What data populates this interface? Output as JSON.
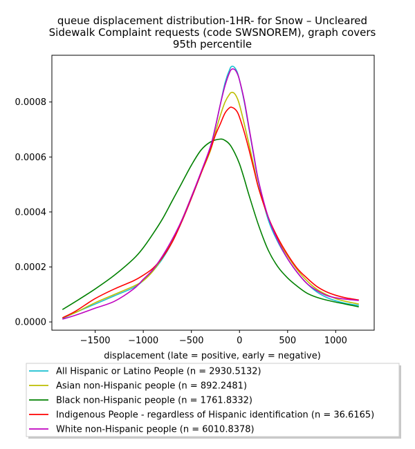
{
  "chart_data": {
    "type": "line",
    "title_lines": [
      "queue displacement distribution-1HR-  for Snow – Uncleared",
      "Sidewalk Complaint  requests (code SWSNOREM), graph covers",
      "95th percentile"
    ],
    "xlabel": "displacement (late = positive, early = negative)",
    "ylabel": "",
    "xlim": [
      -1950,
      1400
    ],
    "ylim": [
      -3e-05,
      0.00097
    ],
    "x_ticks": [
      -1500,
      -1000,
      -500,
      0,
      500,
      1000
    ],
    "x_tick_labels": [
      "−1500",
      "−1000",
      "−500",
      "0",
      "500",
      "1000"
    ],
    "y_ticks": [
      0,
      0.0002,
      0.0004,
      0.0006,
      0.0008
    ],
    "y_tick_labels": [
      "0.0000",
      "0.0002",
      "0.0004",
      "0.0006",
      "0.0008"
    ],
    "grid": false,
    "legend_position": "bottom-outside",
    "series": [
      {
        "name": "All Hispanic or Latino People (n = 2930.5132)",
        "color": "#17becf",
        "x": [
          -1840,
          -1700,
          -1500,
          -1300,
          -1100,
          -1000,
          -900,
          -800,
          -700,
          -600,
          -500,
          -400,
          -300,
          -250,
          -200,
          -150,
          -100,
          -75,
          -50,
          -25,
          0,
          50,
          100,
          150,
          200,
          300,
          400,
          500,
          600,
          700,
          800,
          900,
          1000,
          1100,
          1240
        ],
        "y": [
          1.2e-05,
          3.5e-05,
          6.5e-05,
          9.5e-05,
          0.000125,
          0.00015,
          0.000185,
          0.00023,
          0.00029,
          0.000365,
          0.00045,
          0.00054,
          0.00064,
          0.00071,
          0.00079,
          0.00087,
          0.00092,
          0.00093,
          0.000925,
          0.00091,
          0.00088,
          0.0008,
          0.0007,
          0.0006,
          0.000505,
          0.00037,
          0.00029,
          0.00023,
          0.00018,
          0.00014,
          0.00011,
          9e-05,
          7.7e-05,
          6.8e-05,
          6e-05
        ]
      },
      {
        "name": "Asian non-Hispanic people (n = 892.2481)",
        "color": "#bcbd00",
        "x": [
          -1840,
          -1700,
          -1500,
          -1300,
          -1100,
          -1000,
          -900,
          -800,
          -700,
          -600,
          -500,
          -400,
          -300,
          -250,
          -200,
          -150,
          -100,
          -75,
          -50,
          -25,
          0,
          50,
          100,
          150,
          200,
          300,
          400,
          500,
          600,
          700,
          800,
          900,
          1000,
          1100,
          1240
        ],
        "y": [
          1.5e-05,
          3.5e-05,
          7e-05,
          0.0001,
          0.00013,
          0.00015,
          0.000185,
          0.000235,
          0.000295,
          0.00037,
          0.000455,
          0.00054,
          0.000625,
          0.00069,
          0.00075,
          0.0008,
          0.00083,
          0.000835,
          0.00083,
          0.000815,
          0.00079,
          0.00072,
          0.000645,
          0.000565,
          0.000485,
          0.00038,
          0.0003,
          0.00024,
          0.00019,
          0.00015,
          0.00012,
          0.0001,
          8.5e-05,
          7.5e-05,
          6.5e-05
        ]
      },
      {
        "name": "Black non-Hispanic people (n = 1761.8332)",
        "color": "#008000",
        "x": [
          -1840,
          -1700,
          -1500,
          -1300,
          -1100,
          -1000,
          -900,
          -800,
          -700,
          -600,
          -500,
          -400,
          -300,
          -200,
          -150,
          -100,
          -50,
          0,
          50,
          100,
          200,
          300,
          400,
          500,
          600,
          700,
          800,
          900,
          1000,
          1100,
          1240
        ],
        "y": [
          4.5e-05,
          7.5e-05,
          0.00012,
          0.00017,
          0.00023,
          0.00027,
          0.00032,
          0.000375,
          0.00044,
          0.000505,
          0.00057,
          0.000625,
          0.000655,
          0.000665,
          0.00066,
          0.000645,
          0.000615,
          0.000575,
          0.00052,
          0.00046,
          0.00035,
          0.00026,
          0.0002,
          0.00016,
          0.00013,
          0.000105,
          9e-05,
          8e-05,
          7.2e-05,
          6.5e-05,
          5.5e-05
        ]
      },
      {
        "name": "Indigenous People - regardless of Hispanic identification (n = 36.6165)",
        "color": "#ff0000",
        "x": [
          -1840,
          -1700,
          -1500,
          -1300,
          -1100,
          -1000,
          -900,
          -800,
          -700,
          -600,
          -500,
          -400,
          -300,
          -250,
          -200,
          -150,
          -100,
          -75,
          -50,
          -25,
          0,
          50,
          100,
          150,
          200,
          300,
          400,
          500,
          600,
          700,
          800,
          900,
          1000,
          1100,
          1240
        ],
        "y": [
          1.5e-05,
          4e-05,
          8.5e-05,
          0.00012,
          0.00015,
          0.00017,
          0.000195,
          0.000235,
          0.00029,
          0.000365,
          0.00045,
          0.00054,
          0.00063,
          0.00068,
          0.00072,
          0.00076,
          0.00078,
          0.00078,
          0.000775,
          0.000765,
          0.000745,
          0.00069,
          0.000625,
          0.000555,
          0.000485,
          0.00038,
          0.000305,
          0.000245,
          0.000195,
          0.00016,
          0.00013,
          0.00011,
          9.7e-05,
          8.8e-05,
          8e-05
        ]
      },
      {
        "name": "White non-Hispanic people (n = 6010.8378)",
        "color": "#bf00bf",
        "x": [
          -1840,
          -1700,
          -1500,
          -1300,
          -1100,
          -1000,
          -900,
          -800,
          -700,
          -600,
          -500,
          -400,
          -300,
          -250,
          -200,
          -150,
          -100,
          -75,
          -50,
          -25,
          0,
          50,
          100,
          150,
          200,
          300,
          400,
          500,
          600,
          700,
          800,
          900,
          1000,
          1100,
          1240
        ],
        "y": [
          1e-05,
          2.5e-05,
          5e-05,
          7.5e-05,
          0.00012,
          0.000155,
          0.00019,
          0.00024,
          0.0003,
          0.00037,
          0.000455,
          0.000545,
          0.00064,
          0.00071,
          0.00079,
          0.00086,
          0.00091,
          0.00092,
          0.000918,
          0.000905,
          0.00088,
          0.000805,
          0.000705,
          0.000605,
          0.00051,
          0.00038,
          0.000295,
          0.00023,
          0.00018,
          0.00014,
          0.000115,
          9.7e-05,
          8.8e-05,
          8.3e-05,
          7.8e-05
        ]
      }
    ]
  }
}
